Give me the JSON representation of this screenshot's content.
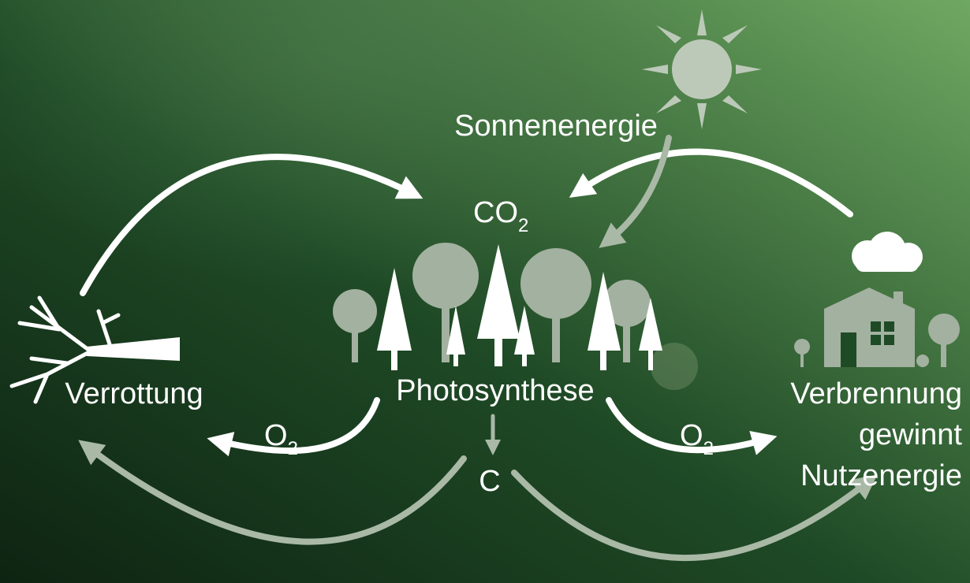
{
  "labels": {
    "sun": "Sonnenenergie",
    "co2": {
      "text": "CO",
      "sub": "2"
    },
    "decay": "Verrottung",
    "photosynthesis": "Photosynthese",
    "o2_left": {
      "text": "O",
      "sub": "2"
    },
    "o2_right": {
      "text": "O",
      "sub": "2"
    },
    "carbon": "C",
    "combustion": [
      "Verbrennung",
      "gewinnt",
      "Nutzenergie"
    ]
  }
}
